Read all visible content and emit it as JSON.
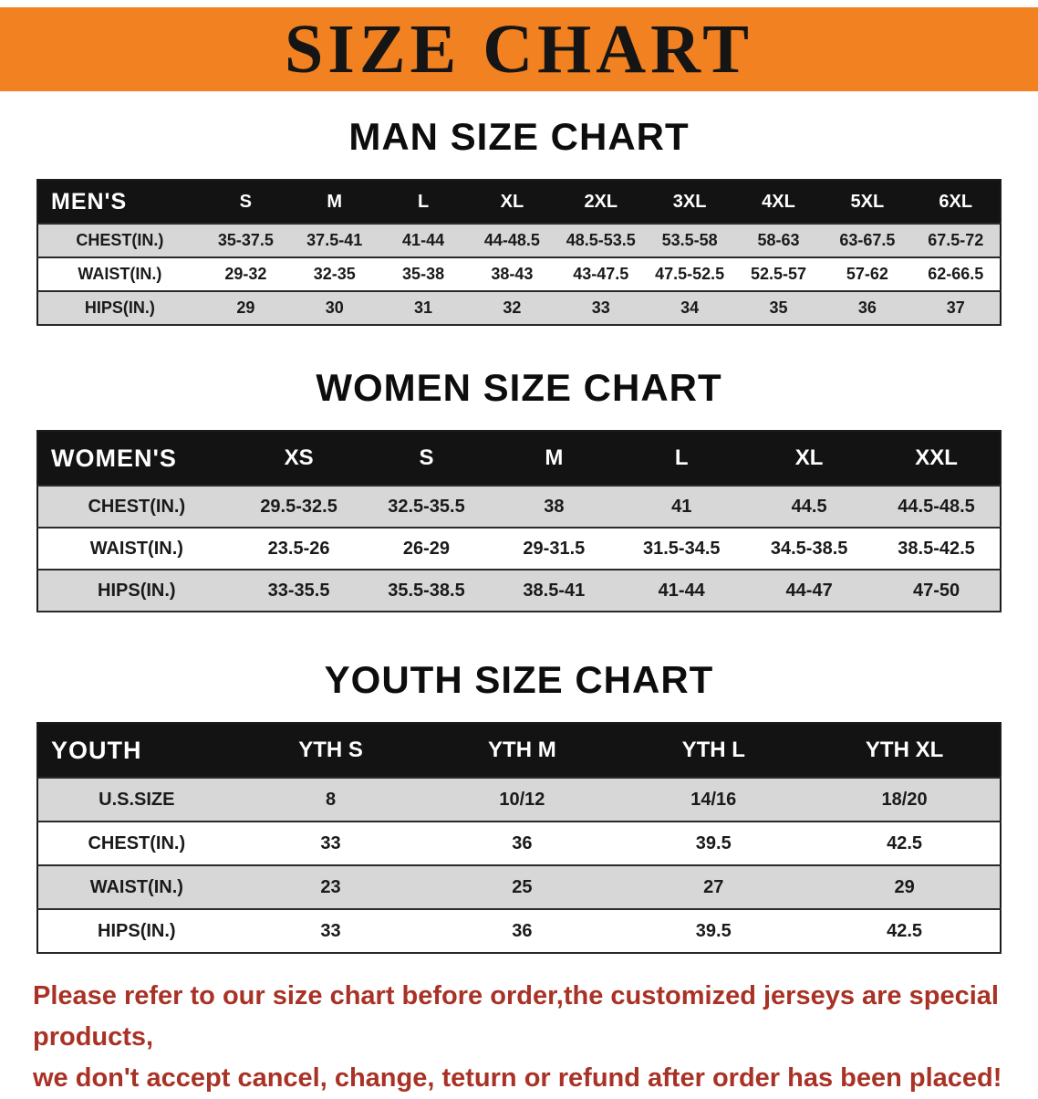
{
  "banner": {
    "title": "SIZE CHART",
    "bg_color": "#f18121",
    "title_color": "#151515"
  },
  "chart_data": [
    {
      "type": "table",
      "title": "MAN SIZE CHART",
      "corner_label": "MEN'S",
      "columns": [
        "S",
        "M",
        "L",
        "XL",
        "2XL",
        "3XL",
        "4XL",
        "5XL",
        "6XL"
      ],
      "rows": [
        {
          "label": "CHEST(IN.)",
          "values": [
            "35-37.5",
            "37.5-41",
            "41-44",
            "44-48.5",
            "48.5-53.5",
            "53.5-58",
            "58-63",
            "63-67.5",
            "67.5-72"
          ]
        },
        {
          "label": "WAIST(IN.)",
          "values": [
            "29-32",
            "32-35",
            "35-38",
            "38-43",
            "43-47.5",
            "47.5-52.5",
            "52.5-57",
            "57-62",
            "62-66.5"
          ]
        },
        {
          "label": "HIPS(IN.)",
          "values": [
            "29",
            "30",
            "31",
            "32",
            "33",
            "34",
            "35",
            "36",
            "37"
          ]
        }
      ]
    },
    {
      "type": "table",
      "title": "WOMEN SIZE CHART",
      "corner_label": "WOMEN'S",
      "columns": [
        "XS",
        "S",
        "M",
        "L",
        "XL",
        "XXL"
      ],
      "rows": [
        {
          "label": "CHEST(IN.)",
          "values": [
            "29.5-32.5",
            "32.5-35.5",
            "38",
            "41",
            "44.5",
            "44.5-48.5"
          ]
        },
        {
          "label": "WAIST(IN.)",
          "values": [
            "23.5-26",
            "26-29",
            "29-31.5",
            "31.5-34.5",
            "34.5-38.5",
            "38.5-42.5"
          ]
        },
        {
          "label": "HIPS(IN.)",
          "values": [
            "33-35.5",
            "35.5-38.5",
            "38.5-41",
            "41-44",
            "44-47",
            "47-50"
          ]
        }
      ]
    },
    {
      "type": "table",
      "title": "YOUTH SIZE CHART",
      "corner_label": "YOUTH",
      "columns": [
        "YTH S",
        "YTH M",
        "YTH L",
        "YTH XL"
      ],
      "rows": [
        {
          "label": "U.S.SIZE",
          "values": [
            "8",
            "10/12",
            "14/16",
            "18/20"
          ]
        },
        {
          "label": "CHEST(IN.)",
          "values": [
            "33",
            "36",
            "39.5",
            "42.5"
          ]
        },
        {
          "label": "WAIST(IN.)",
          "values": [
            "23",
            "25",
            "27",
            "29"
          ]
        },
        {
          "label": "HIPS(IN.)",
          "values": [
            "33",
            "36",
            "39.5",
            "42.5"
          ]
        }
      ]
    }
  ],
  "footnote": {
    "lines": [
      "Please refer to our size chart before order,the customized jerseys are special products,",
      "we don't accept cancel, change, teturn or refund after order has been placed!"
    ],
    "color": "#a93226"
  }
}
